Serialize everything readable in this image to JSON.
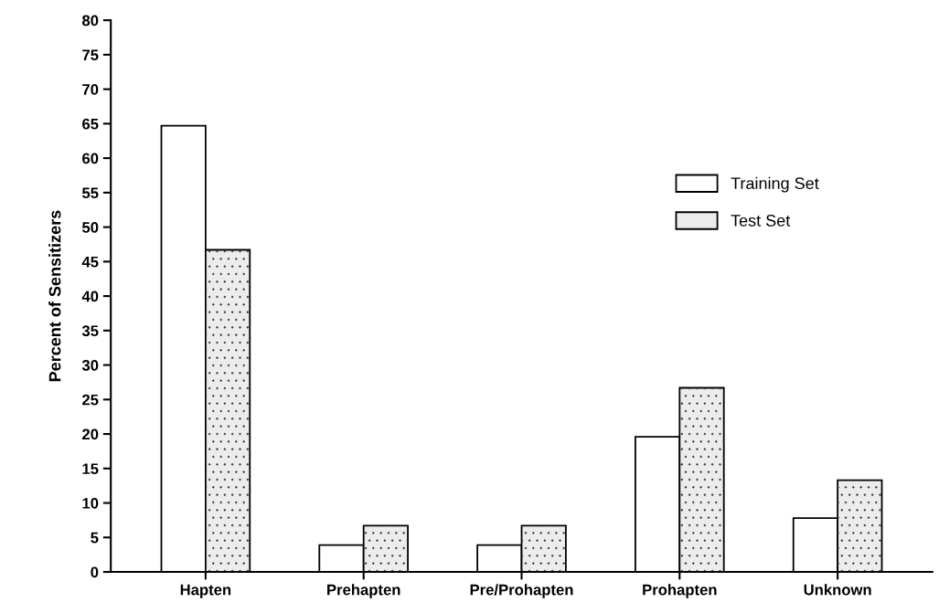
{
  "chart_data": {
    "type": "bar",
    "ylabel": "Percent of Sensitizers",
    "categories": [
      "Hapten",
      "Prehapten",
      "Pre/Prohapten",
      "Prohapten",
      "Unknown"
    ],
    "series": [
      {
        "name": "Training Set",
        "color": "#ffffff",
        "values": [
          64.7,
          3.9,
          3.9,
          19.6,
          7.8
        ]
      },
      {
        "name": "Test Set",
        "color": "#ececec",
        "values": [
          46.7,
          6.7,
          6.7,
          26.7,
          13.3
        ]
      }
    ],
    "ylim": [
      0,
      80
    ],
    "yticks": [
      0,
      5,
      10,
      15,
      20,
      25,
      30,
      35,
      40,
      45,
      50,
      55,
      60,
      65,
      70,
      75,
      80
    ],
    "grid": false,
    "legend": "right"
  }
}
